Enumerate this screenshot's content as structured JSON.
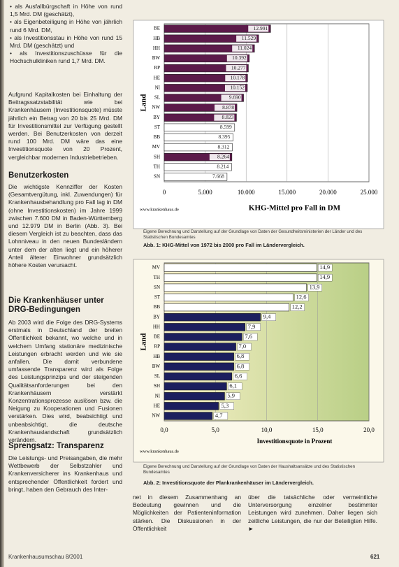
{
  "article": {
    "bullets": [
      "• als Ausfallbürgschaft in Höhe von rund 1,5 Mrd. DM (geschätzt),",
      "• als Eigenbeteiligung in Höhe von jährlich rund 6 Mrd. DM,",
      "• als Investitionsstau in Höhe von rund 15 Mrd. DM (geschätzt) und",
      "• als Investitionszuschüsse für die Hochschulkliniken rund 1,7 Mrd. DM."
    ],
    "paragraph_1": "Aufgrund Kapitalkosten bei Einhaltung der Beitragssatzstabilität wie bei Krankenhäusern (Investitionsquote) müsste jährlich ein Betrag von 20 bis 25 Mrd. DM für Investitionsmittel zur Verfügung gestellt werden. Bei Benutzerkosten von derzeit rund 100 Mrd. DM wäre das eine Investitionsquote von 20 Prozent, vergleichbar modernen Industriebetrieben.",
    "heading_1": "Benutzerkosten",
    "paragraph_2": "Die wichtigste Kennziffer der Kosten (Gesamtvergütung, inkl. Zuwendungen) für Krankenhausbehandlung pro Fall lag in DM (ohne Investitionskosten) im Jahre 1999 zwischen 7.600 DM in Baden-Württemberg und 12.979 DM in Berlin (Abb. 3). Bei diesem Vergleich ist zu beachten, dass das Lohnniveau in den neuen Bundesländern unter dem der alten liegt und ein höherer Anteil älterer Einwohner grundsätzlich höhere Kosten verursacht.",
    "heading_2": "Die Krankenhäuser unter DRG-Bedingungen",
    "paragraph_3": "Ab 2003 wird die Folge des DRG-Systems erstmals in Deutschland der breiten Öffentlichkeit bekannt, wo welche und in welchem Umfang stationäre medizinische Leistungen erbracht werden und wie sie anfallen. Die damit verbundene umfassende Transparenz wird als Folge des Leistungsprinzips und der steigenden Qualitätsanforderungen bei den Krankenhäusern verstärkt Konzentrationsprozesse auslösen bzw. die Neigung zu Kooperationen und Fusionen verstärken. Dies wird, beabsichtigt und unbeabsichtigt, die deutsche Krankenhauslandschaft grundsätzlich verändern.",
    "heading_3": "Sprengsatz: Transparenz",
    "paragraph_4": "Die Leistungs- und Preisangaben, die mehr Wettbewerb der Selbstzahler und Krankenversicherer ins Krankenhaus und entsprechender Öffentlichkeit fordert und bringt, haben den Gebrauch des Inter-",
    "paragraph_5": "net in diesem Zusammenhang an Bedeutung gewinnen und die Möglichkeiten der Patienteninformation stärken. Die Diskussionen in der Öffentlichkeit",
    "paragraph_6": "über die tatsächliche oder vermeintliche Unterversorgung einzelner bestimmter Leistungen wird zunehmen. Daher liegen sich zeitliche Leistungen, die nur der Beteiligten Hilfe. ►"
  },
  "footer": {
    "journal": "Krankenhausumschau 8/2001",
    "page": "621"
  },
  "chart_data": [
    {
      "type": "bar",
      "orientation": "horizontal",
      "y_label": "Land",
      "x_label": "KHG-Mittel pro Fall in DM",
      "source": "www.krankenhaus.de",
      "note": "Eigene Berechnung und Darstellung auf der Grundlage von Daten der Gesundheitsministerien der Länder und des Statistischen Bundesamtes",
      "caption": "Abb. 1: KHG-Mittel von 1972 bis 2000 pro Fall im Ländervergleich.",
      "categories": [
        "BE",
        "HB",
        "HH",
        "BW",
        "RP",
        "HE",
        "NI",
        "SL",
        "NW",
        "BY",
        "ST",
        "BB",
        "MV",
        "SH",
        "TH",
        "SN"
      ],
      "values": [
        12991,
        11529,
        11024,
        10392,
        10277,
        10178,
        10152,
        9690,
        8878,
        8823,
        8599,
        8395,
        8312,
        8264,
        8214,
        7668
      ],
      "value_labels": [
        "12.991",
        "11.529",
        "11.024",
        "10.392",
        "10.277",
        "10.178",
        "10.152",
        "9.690",
        "8.878",
        "8.823",
        "8.599",
        "8.395",
        "8.312",
        "8.264",
        "8.214",
        "7.668"
      ],
      "colors": [
        "#5b1a4a",
        "#5b1a4a",
        "#5b1a4a",
        "#5b1a4a",
        "#5b1a4a",
        "#5b1a4a",
        "#5b1a4a",
        "#5b1a4a",
        "#5b1a4a",
        "#5b1a4a",
        "#ffffff",
        "#ffffff",
        "#ffffff",
        "#5b1a4a",
        "#ffffff",
        "#ffffff"
      ],
      "label_position": "inside",
      "background": "#ffffff",
      "xlim": [
        0,
        25000
      ],
      "xticks": [
        0,
        {
          "value": 5000,
          "label": "5.000"
        },
        {
          "value": 10000,
          "label": "10.000"
        },
        {
          "value": 15000,
          "label": "15.000"
        },
        {
          "value": 20000,
          "label": "20.000"
        },
        {
          "value": 25000,
          "label": "25.000"
        }
      ],
      "grid": true
    },
    {
      "type": "bar",
      "orientation": "horizontal",
      "y_label": "Land",
      "x_label": "Investitionsquote in Prozent",
      "source": "www.krankenhaus.de",
      "note": "Eigene Berechnung und Darstellung auf der Grundlage von Daten der Haushaltsansätze und des Statistischen Bundesamtes",
      "caption": "Abb. 2: Investitionsquote der Plankrankenhäuser im Ländervergleich.",
      "categories": [
        "MV",
        "TH",
        "SN",
        "ST",
        "BB",
        "BY",
        "HH",
        "BE",
        "RP",
        "HB",
        "BW",
        "SL",
        "SH",
        "NI",
        "HE",
        "NW"
      ],
      "values": [
        14.9,
        14.9,
        13.9,
        12.6,
        12.2,
        9.4,
        7.9,
        7.6,
        7.0,
        6.8,
        6.8,
        6.6,
        6.1,
        5.9,
        5.3,
        4.7
      ],
      "value_labels": [
        "14,9",
        "14,9",
        "13,9",
        "12,6",
        "12,2",
        "9,4",
        "7,9",
        "7,6",
        "7,0",
        "6,8",
        "6,8",
        "6,6",
        "6,1",
        "5,9",
        "5,3",
        "4,7"
      ],
      "colors": [
        "#ffffff",
        "#ffffff",
        "#ffffff",
        "#ffffff",
        "#ffffff",
        "#1c1f5e",
        "#1c1f5e",
        "#1c1f5e",
        "#1c1f5e",
        "#1c1f5e",
        "#1c1f5e",
        "#1c1f5e",
        "#1c1f5e",
        "#1c1f5e",
        "#1c1f5e",
        "#1c1f5e"
      ],
      "label_position": "outside",
      "background": "gradient",
      "xlim": [
        0,
        20
      ],
      "xticks": [
        {
          "value": 0,
          "label": "0,0"
        },
        {
          "value": 5,
          "label": "5,0"
        },
        {
          "value": 10,
          "label": "10,0"
        },
        {
          "value": 15,
          "label": "15,0"
        },
        {
          "value": 20,
          "label": "20,0"
        }
      ],
      "grid": true
    }
  ]
}
